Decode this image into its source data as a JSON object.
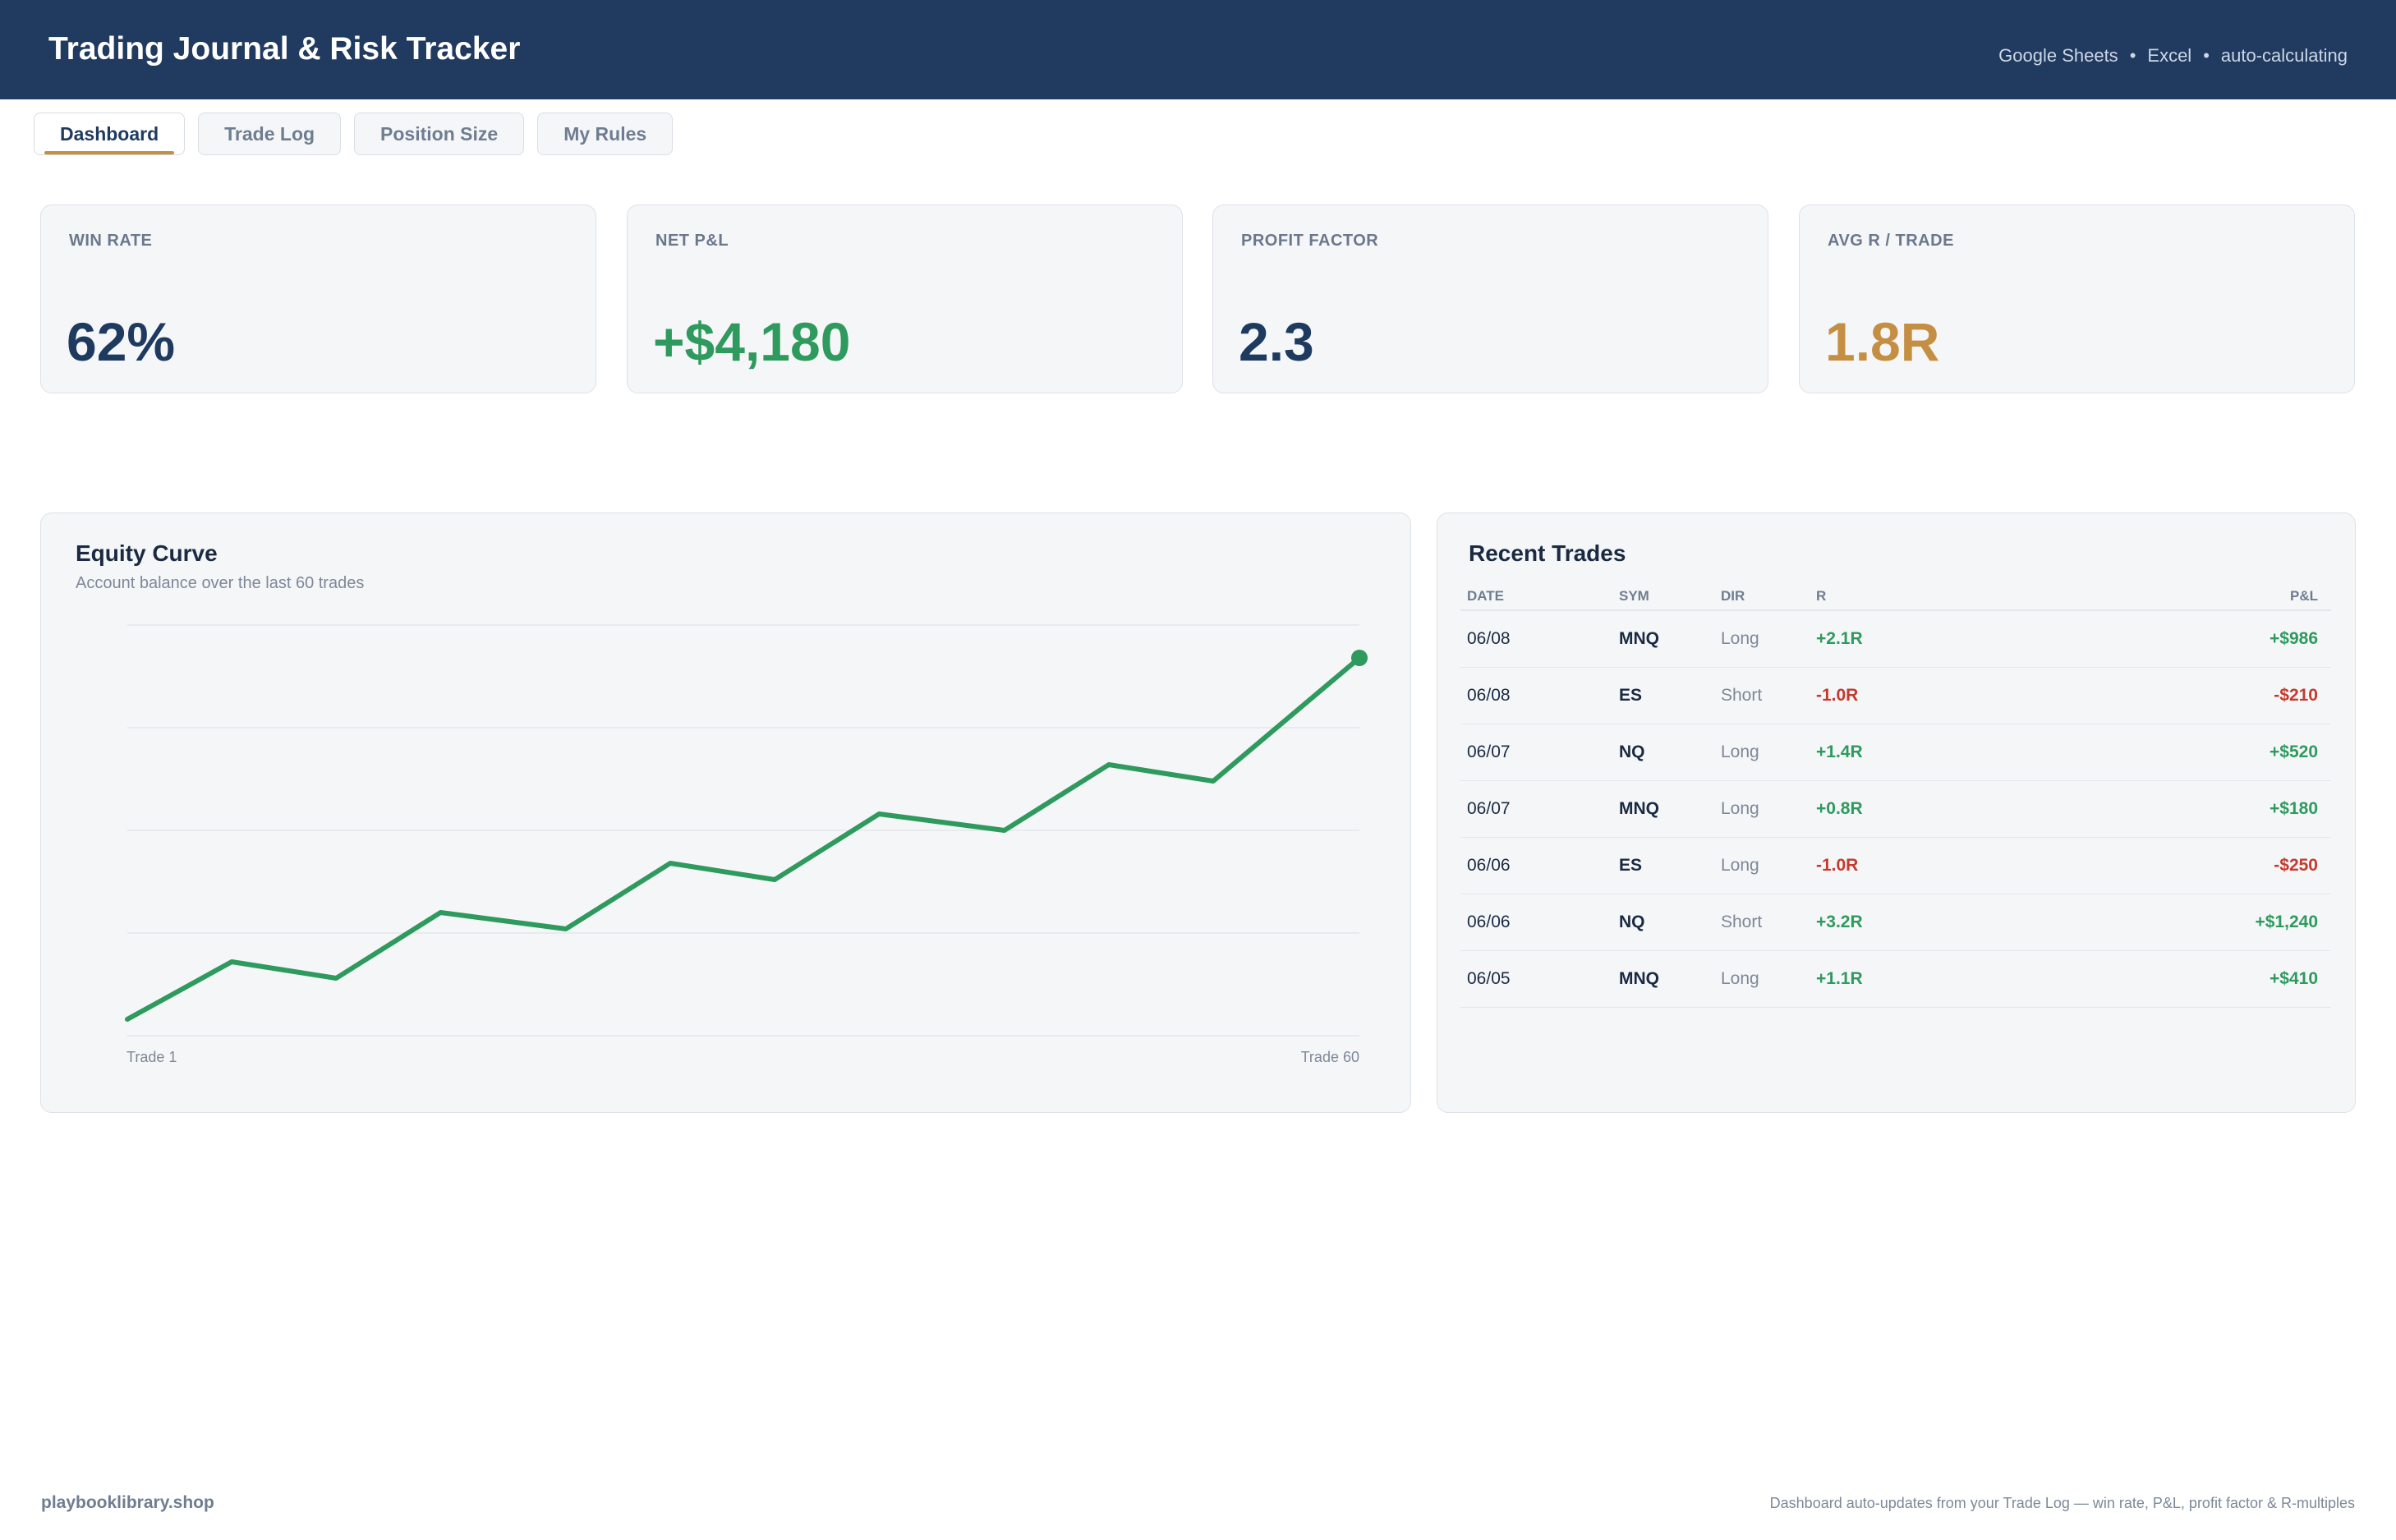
{
  "header": {
    "title": "Trading Journal & Risk Tracker",
    "meta": [
      "Google Sheets",
      "Excel",
      "auto-calculating"
    ],
    "separator": "•"
  },
  "tabs": [
    {
      "label": "Dashboard",
      "active": true
    },
    {
      "label": "Trade Log",
      "active": false
    },
    {
      "label": "Position Size",
      "active": false
    },
    {
      "label": "My Rules",
      "active": false
    }
  ],
  "kpis": [
    {
      "label": "WIN RATE",
      "value": "62%",
      "color": "#1f3a5f"
    },
    {
      "label": "NET P&L",
      "value": "+$4,180",
      "color": "#2e9a5d"
    },
    {
      "label": "PROFIT FACTOR",
      "value": "2.3",
      "color": "#1f3a5f"
    },
    {
      "label": "AVG R / TRADE",
      "value": "1.8R",
      "color": "#c58f43"
    }
  ],
  "equity_panel": {
    "title": "Equity Curve",
    "subtitle": "Account balance over the last 60 trades",
    "x_start_label": "Trade 1",
    "x_end_label": "Trade 60"
  },
  "chart_data": {
    "type": "line",
    "title": "Equity Curve",
    "subtitle": "Account balance over the last 60 trades",
    "x": [
      1,
      6,
      11,
      16,
      22,
      27,
      32,
      37,
      43,
      48,
      53,
      60
    ],
    "values": [
      0.04,
      0.18,
      0.14,
      0.3,
      0.26,
      0.42,
      0.38,
      0.54,
      0.5,
      0.66,
      0.62,
      0.92
    ],
    "ylim": [
      0,
      1.0
    ],
    "xlim": [
      1,
      60
    ],
    "x_tick_labels": [
      "Trade 1",
      "Trade 60"
    ],
    "grid": true,
    "gridlines": 5,
    "line_color": "#2e9a5d",
    "end_marker": true
  },
  "trades_panel": {
    "title": "Recent Trades",
    "columns": [
      "DATE",
      "SYM",
      "DIR",
      "R",
      "P&L"
    ],
    "rows": [
      {
        "date": "06/08",
        "sym": "MNQ",
        "dir": "Long",
        "r": "+2.1R",
        "pl": "+$986",
        "positive": true
      },
      {
        "date": "06/08",
        "sym": "ES",
        "dir": "Short",
        "r": "-1.0R",
        "pl": "-$210",
        "positive": false
      },
      {
        "date": "06/07",
        "sym": "NQ",
        "dir": "Long",
        "r": "+1.4R",
        "pl": "+$520",
        "positive": true
      },
      {
        "date": "06/07",
        "sym": "MNQ",
        "dir": "Long",
        "r": "+0.8R",
        "pl": "+$180",
        "positive": true
      },
      {
        "date": "06/06",
        "sym": "ES",
        "dir": "Long",
        "r": "-1.0R",
        "pl": "-$250",
        "positive": false
      },
      {
        "date": "06/06",
        "sym": "NQ",
        "dir": "Short",
        "r": "+3.2R",
        "pl": "+$1,240",
        "positive": true
      },
      {
        "date": "06/05",
        "sym": "MNQ",
        "dir": "Long",
        "r": "+1.1R",
        "pl": "+$410",
        "positive": true
      }
    ]
  },
  "footer": {
    "site": "playbooklibrary.shop",
    "note": "Dashboard auto-updates from your Trade Log — win rate, P&L, profit factor & R-multiples"
  }
}
